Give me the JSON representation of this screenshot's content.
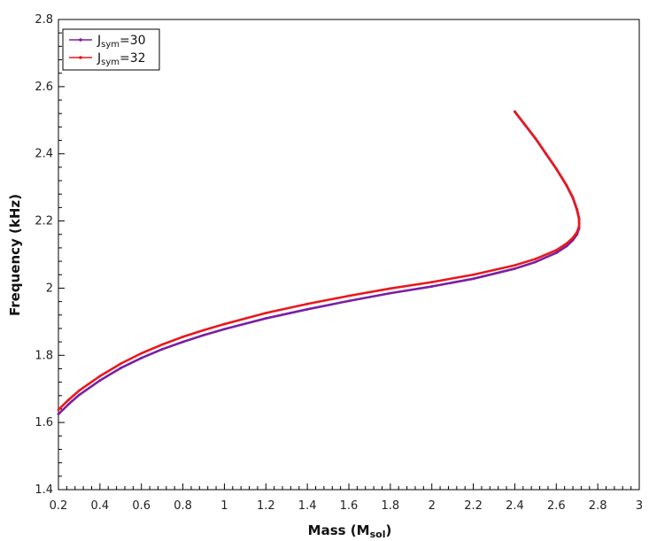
{
  "chart_data": {
    "type": "line",
    "xlabel": "Mass (M",
    "xlabel_sub": "sol",
    "xlabel_end": ")",
    "ylabel": "Frequency (kHz)",
    "xlim": [
      0.2,
      3.0
    ],
    "ylim": [
      1.4,
      2.8
    ],
    "x_ticks": [
      "0.2",
      "0.4",
      "0.6",
      "0.8",
      "1",
      "1.2",
      "1.4",
      "1.6",
      "1.8",
      "2",
      "2.2",
      "2.4",
      "2.6",
      "2.8",
      "3"
    ],
    "x_tick_values": [
      0.2,
      0.4,
      0.6,
      0.8,
      1.0,
      1.2,
      1.4,
      1.6,
      1.8,
      2.0,
      2.2,
      2.4,
      2.6,
      2.8,
      3.0
    ],
    "y_ticks": [
      "1.4",
      "1.6",
      "1.8",
      "2",
      "2.2",
      "2.4",
      "2.6",
      "2.8"
    ],
    "y_tick_values": [
      1.4,
      1.6,
      1.8,
      2.0,
      2.2,
      2.4,
      2.6,
      2.8
    ],
    "grid": false,
    "legend_position": "top-left",
    "series": [
      {
        "name_main": "J",
        "name_sub": "sym",
        "name_rest": "=30",
        "color": "#7a1fa2",
        "x": [
          0.2,
          0.25,
          0.3,
          0.4,
          0.5,
          0.6,
          0.7,
          0.8,
          0.9,
          1.0,
          1.2,
          1.4,
          1.6,
          1.8,
          2.0,
          2.2,
          2.4,
          2.5,
          2.6,
          2.65,
          2.68,
          2.7,
          2.71,
          2.71,
          2.7,
          2.68,
          2.65,
          2.6,
          2.55,
          2.5,
          2.45,
          2.4
        ],
        "y": [
          1.625,
          1.655,
          1.682,
          1.725,
          1.762,
          1.792,
          1.818,
          1.84,
          1.86,
          1.878,
          1.91,
          1.937,
          1.962,
          1.985,
          2.005,
          2.028,
          2.058,
          2.078,
          2.105,
          2.125,
          2.143,
          2.16,
          2.178,
          2.205,
          2.232,
          2.268,
          2.305,
          2.355,
          2.4,
          2.445,
          2.485,
          2.525
        ]
      },
      {
        "name_main": "J",
        "name_sub": "sym",
        "name_rest": "=32",
        "color": "#e8191c",
        "x": [
          0.2,
          0.25,
          0.3,
          0.4,
          0.5,
          0.6,
          0.7,
          0.8,
          0.9,
          1.0,
          1.2,
          1.4,
          1.6,
          1.8,
          2.0,
          2.2,
          2.4,
          2.5,
          2.6,
          2.65,
          2.68,
          2.7,
          2.71,
          2.71,
          2.7,
          2.68,
          2.65,
          2.6,
          2.55,
          2.5,
          2.45,
          2.4
        ],
        "y": [
          1.638,
          1.668,
          1.695,
          1.738,
          1.775,
          1.806,
          1.832,
          1.855,
          1.875,
          1.893,
          1.926,
          1.953,
          1.977,
          1.999,
          2.018,
          2.04,
          2.068,
          2.087,
          2.113,
          2.133,
          2.15,
          2.167,
          2.185,
          2.208,
          2.235,
          2.27,
          2.306,
          2.356,
          2.401,
          2.446,
          2.486,
          2.526
        ]
      }
    ]
  }
}
